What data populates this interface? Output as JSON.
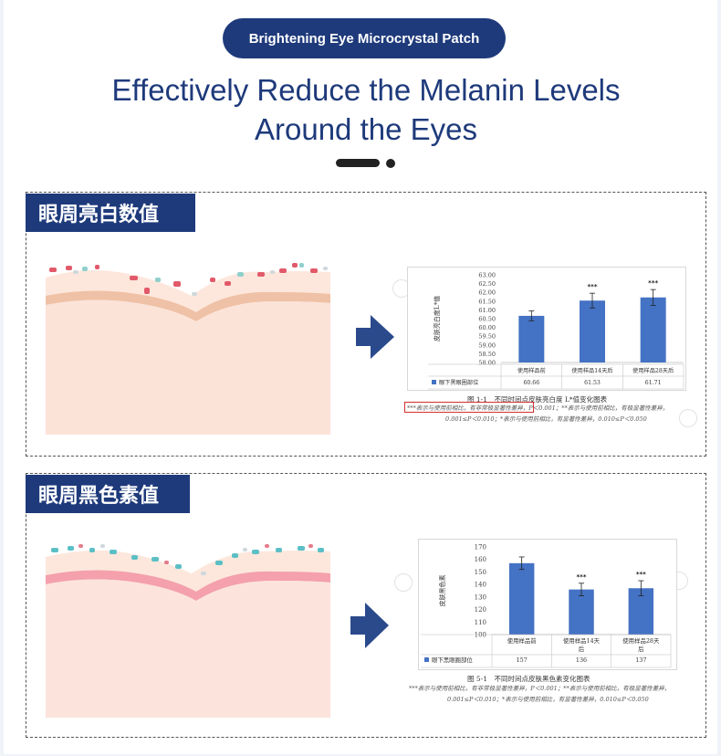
{
  "badge": "Brightening Eye Microcrystal Patch",
  "headline_line1": "Effectively Reduce the Melanin Levels",
  "headline_line2": "Around the Eyes",
  "panel1_title": "眼周亮白数值",
  "panel2_title": "眼周黑色素值",
  "colors": {
    "navy": "#1e3a7b",
    "bar": "#4472c4",
    "skin_peach": "#fbe3d8",
    "skin_pink": "#f6a2b0"
  },
  "chart_data": [
    {
      "type": "bar",
      "ylabel": "皮肤亮白度L*值",
      "ylim": [
        58.0,
        63.0
      ],
      "yticks": [
        "63.00",
        "62.50",
        "62.00",
        "61.50",
        "61.00",
        "60.50",
        "60.00",
        "59.50",
        "59.00",
        "58.50",
        "58.00"
      ],
      "categories": [
        "使用样品前",
        "使用样品14天后",
        "使用样品28天后"
      ],
      "series": [
        {
          "name": "眼下黑眼圈部位",
          "values": [
            60.66,
            61.53,
            61.71
          ],
          "errors": [
            0.28,
            0.42,
            0.45
          ]
        }
      ],
      "value_labels": [
        "60.66",
        "61.53",
        "61.71"
      ],
      "significance": [
        "",
        "***",
        "***"
      ],
      "caption": "图 1-1　不同时间点皮肤亮白度 L*值变化图表",
      "note_line1_highlight": "***表示与使用前相比，有非常极显著性差异",
      "note_line1_rest": "，P＜0.001；**表示与使用前相比，有极显著性差异，",
      "note_line2": "0.001≤P＜0.010；*表示与使用前相比，有显著性差异，0.010≤P＜0.050"
    },
    {
      "type": "bar",
      "ylabel": "皮肤黑色素",
      "ylim": [
        100,
        170
      ],
      "yticks": [
        "170",
        "160",
        "150",
        "140",
        "130",
        "120",
        "110",
        "100"
      ],
      "categories": [
        "使用样品前",
        "使用样品14天后",
        "使用样品28天后"
      ],
      "categories_display": [
        [
          "使用样品前"
        ],
        [
          "使用样品14天",
          "后"
        ],
        [
          "使用样品28天",
          "后"
        ]
      ],
      "series": [
        {
          "name": "眼下黑眼圈部位",
          "values": [
            157,
            136,
            137
          ],
          "errors": [
            5,
            5,
            6
          ]
        }
      ],
      "value_labels": [
        "157",
        "136",
        "137"
      ],
      "significance": [
        "",
        "***",
        "***"
      ],
      "caption": "图 5-1　不同时间点皮肤黑色素变化图表",
      "note_line1": "***表示与使用前相比，有非常极显著性差异，P＜0.001；**表示与使用前相比，有极显著性差异，",
      "note_line2": "0.001≤P＜0.010；*表示与使用前相比，有显著性差异，0.010≤P＜0.050"
    }
  ]
}
